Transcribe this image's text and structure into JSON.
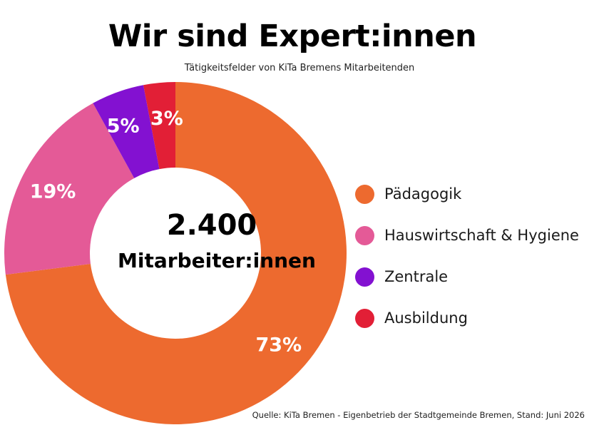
{
  "chart_data": {
    "type": "pie",
    "title": "Wir sind Expert:innen",
    "subtitle": "Tätigkeitsfelder von KiTa Bremens Mitarbeitenden",
    "center_value": "2.400",
    "center_label": "Mitarbeiter:innen",
    "categories": [
      "Pädagogik",
      "Hauswirtschaft & Hygiene",
      "Zentrale",
      "Ausbildung"
    ],
    "values": [
      73,
      19,
      5,
      3
    ],
    "value_labels": [
      "73%",
      "19%",
      "5%",
      "3%"
    ],
    "colors": [
      "#ED6A2F",
      "#E45A97",
      "#8311D1",
      "#E21F36"
    ],
    "legend_position": "right",
    "source": "Quelle: KiTa Bremen - Eigenbetrieb der Stadtgemeinde Bremen, Stand: Juni 2026"
  }
}
